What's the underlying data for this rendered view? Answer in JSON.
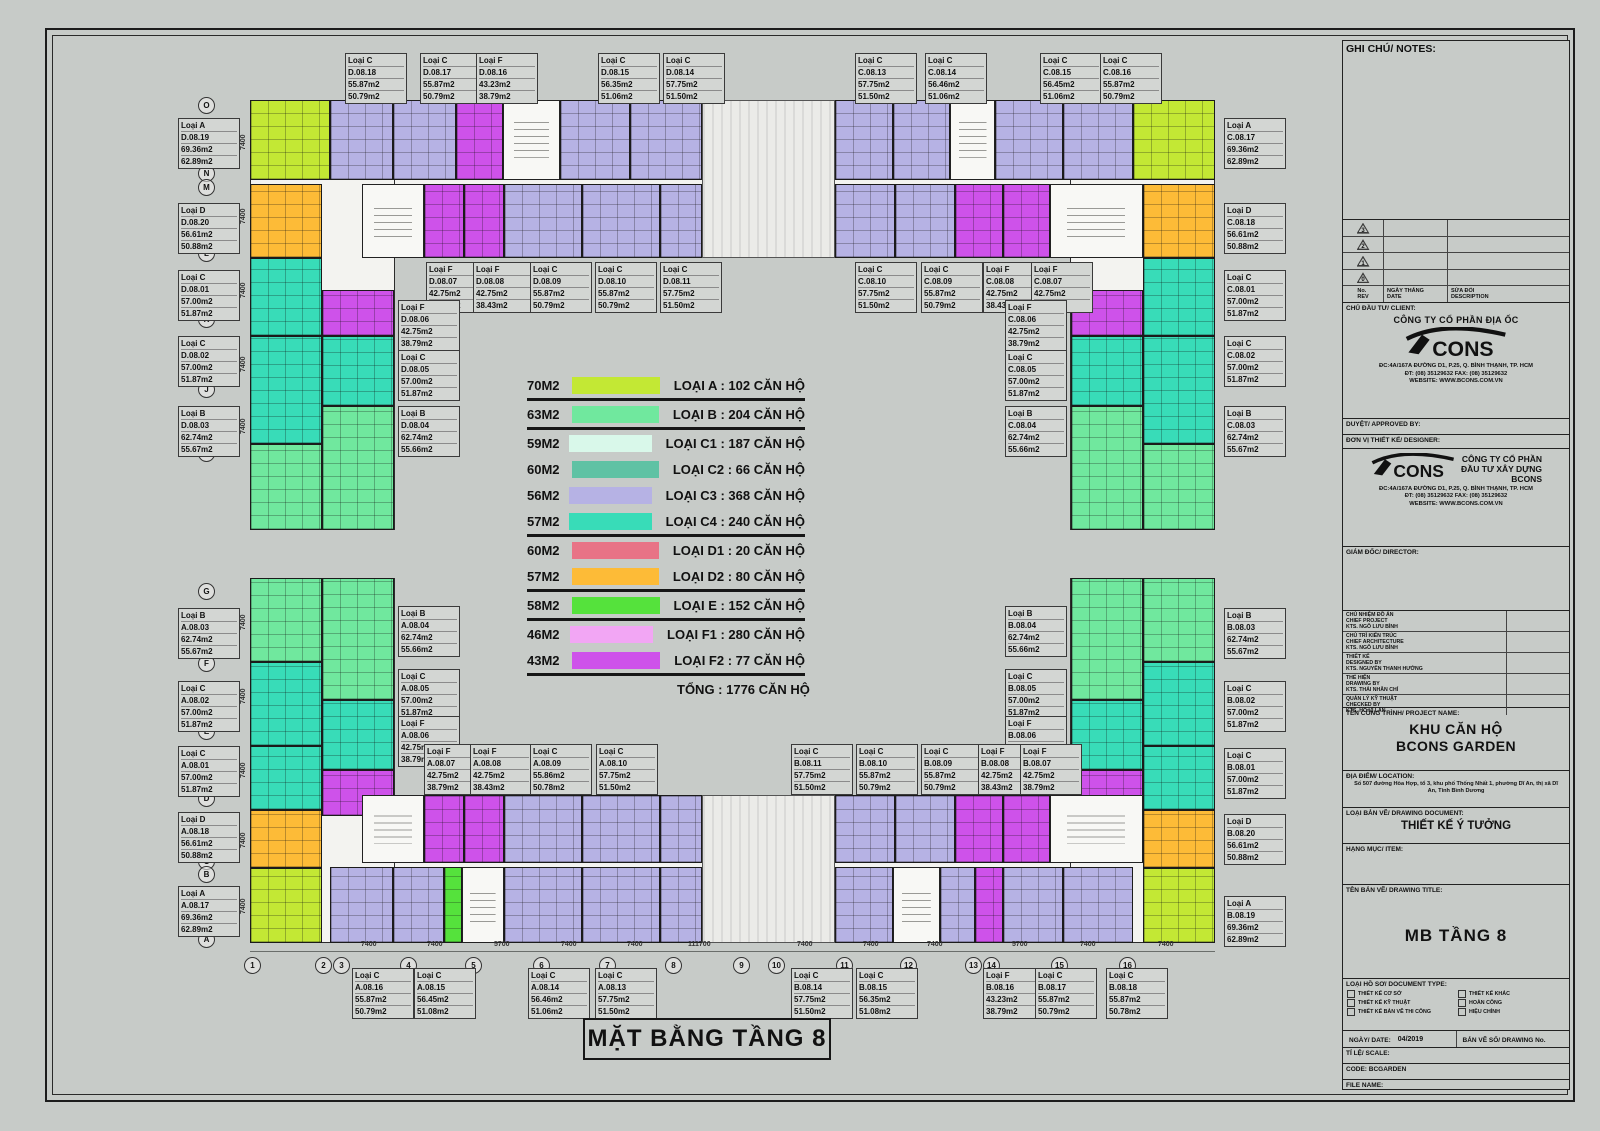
{
  "drawing_title": "MẶT BẰNG TẦNG 8",
  "type_colors": {
    "A": "#c3e834",
    "B": "#70e89e",
    "C1": "#d9f8ea",
    "C2": "#5fc2a4",
    "C3": "#b6b2e4",
    "C4": "#38dcb8",
    "D1": "#e87386",
    "D2": "#fdbb37",
    "E": "#55e23c",
    "F1": "#f2a6f4",
    "F2": "#ce52ea"
  },
  "legend": {
    "rows": [
      {
        "area": "70M2",
        "type": "LOẠI A",
        "count": ": 102 CĂN HỘ",
        "color": "#c3e834",
        "sep": true
      },
      {
        "area": "63M2",
        "type": "LOẠI B",
        "count": ": 204 CĂN HỘ",
        "color": "#70e89e",
        "sep": true
      },
      {
        "area": "59M2",
        "type": "LOẠI C1",
        "count": ": 187 CĂN HỘ",
        "color": "#d9f8ea",
        "sep": false
      },
      {
        "area": "60M2",
        "type": "LOẠI C2",
        "count": ":   66 CĂN HỘ",
        "color": "#5fc2a4",
        "sep": false
      },
      {
        "area": "56M2",
        "type": "LOẠI C3",
        "count": ": 368 CĂN HỘ",
        "color": "#b6b2e4",
        "sep": false
      },
      {
        "area": "57M2",
        "type": "LOẠI C4",
        "count": ": 240 CĂN HỘ",
        "color": "#38dcb8",
        "sep": true
      },
      {
        "area": "60M2",
        "type": "LOẠI D1",
        "count": ":   20 CĂN HỘ",
        "color": "#e87386",
        "sep": false
      },
      {
        "area": "57M2",
        "type": "LOẠI D2",
        "count": ":   80 CĂN HỘ",
        "color": "#fdbb37",
        "sep": true
      },
      {
        "area": "58M2",
        "type": "LOẠI E",
        "count": ":  152 CĂN HỘ",
        "color": "#55e23c",
        "sep": true
      },
      {
        "area": "46M2",
        "type": "LOẠI F1",
        "count": ": 280 CĂN HỘ",
        "color": "#f2a6f4",
        "sep": false
      },
      {
        "area": "43M2",
        "type": "LOẠI F2",
        "count": ":   77 CĂN HỘ",
        "color": "#ce52ea",
        "sep": true
      }
    ],
    "total_label": "TỔNG",
    "total_value": ": 1776 CĂN HỘ"
  },
  "units": [
    {
      "code": "D.08.18",
      "type": "Loại C",
      "tk": "C3",
      "gross": "55.87m2",
      "net": "50.79m2"
    },
    {
      "code": "D.08.17",
      "type": "Loại C",
      "tk": "C3",
      "gross": "55.87m2",
      "net": "50.79m2"
    },
    {
      "code": "D.08.16",
      "type": "Loại F",
      "tk": "F2",
      "gross": "43.23m2",
      "net": "38.79m2"
    },
    {
      "code": "D.08.15",
      "type": "Loại C",
      "tk": "C3",
      "gross": "56.35m2",
      "net": "51.06m2"
    },
    {
      "code": "D.08.14",
      "type": "Loại C",
      "tk": "C3",
      "gross": "57.75m2",
      "net": "51.50m2"
    },
    {
      "code": "C.08.13",
      "type": "Loại C",
      "tk": "C3",
      "gross": "57.75m2",
      "net": "51.50m2"
    },
    {
      "code": "C.08.14",
      "type": "Loại C",
      "tk": "C3",
      "gross": "56.46m2",
      "net": "51.06m2"
    },
    {
      "code": "C.08.15",
      "type": "Loại C",
      "tk": "C3",
      "gross": "56.45m2",
      "net": "51.06m2"
    },
    {
      "code": "C.08.16",
      "type": "Loại C",
      "tk": "C3",
      "gross": "55.87m2",
      "net": "50.79m2"
    },
    {
      "code": "D.08.07",
      "type": "Loại F",
      "tk": "F2",
      "gross": "42.75m2",
      "net": "38.79m2"
    },
    {
      "code": "D.08.08",
      "type": "Loại F",
      "tk": "F2",
      "gross": "42.75m2",
      "net": "38.43m2"
    },
    {
      "code": "D.08.09",
      "type": "Loại C",
      "tk": "C3",
      "gross": "55.87m2",
      "net": "50.79m2"
    },
    {
      "code": "D.08.10",
      "type": "Loại C",
      "tk": "C3",
      "gross": "55.87m2",
      "net": "50.79m2"
    },
    {
      "code": "D.08.11",
      "type": "Loại C",
      "tk": "C3",
      "gross": "57.75m2",
      "net": "51.50m2"
    },
    {
      "code": "C.08.10",
      "type": "Loại C",
      "tk": "C3",
      "gross": "57.75m2",
      "net": "51.50m2"
    },
    {
      "code": "C.08.09",
      "type": "Loại C",
      "tk": "C3",
      "gross": "55.87m2",
      "net": "50.79m2"
    },
    {
      "code": "C.08.08",
      "type": "Loại F",
      "tk": "F2",
      "gross": "42.75m2",
      "net": "38.43m2"
    },
    {
      "code": "C.08.07",
      "type": "Loại F",
      "tk": "F2",
      "gross": "42.75m2",
      "net": "38.79m2"
    },
    {
      "code": "D.08.19",
      "type": "Loại A",
      "tk": "A",
      "gross": "69.36m2",
      "net": "62.89m2"
    },
    {
      "code": "D.08.20",
      "type": "Loại D",
      "tk": "D2",
      "gross": "56.61m2",
      "net": "50.88m2"
    },
    {
      "code": "D.08.01",
      "type": "Loại C",
      "tk": "C4",
      "gross": "57.00m2",
      "net": "51.87m2"
    },
    {
      "code": "D.08.02",
      "type": "Loại C",
      "tk": "C4",
      "gross": "57.00m2",
      "net": "51.87m2"
    },
    {
      "code": "D.08.03",
      "type": "Loại B",
      "tk": "B",
      "gross": "62.74m2",
      "net": "55.67m2"
    },
    {
      "code": "D.08.06",
      "type": "Loại F",
      "tk": "F2",
      "gross": "42.75m2",
      "net": "38.79m2"
    },
    {
      "code": "D.08.05",
      "type": "Loại C",
      "tk": "C4",
      "gross": "57.00m2",
      "net": "51.87m2"
    },
    {
      "code": "D.08.04",
      "type": "Loại B",
      "tk": "B",
      "gross": "62.74m2",
      "net": "55.66m2"
    },
    {
      "code": "C.08.17",
      "type": "Loại A",
      "tk": "A",
      "gross": "69.36m2",
      "net": "62.89m2"
    },
    {
      "code": "C.08.18",
      "type": "Loại D",
      "tk": "D2",
      "gross": "56.61m2",
      "net": "50.88m2"
    },
    {
      "code": "C.08.01",
      "type": "Loại C",
      "tk": "C4",
      "gross": "57.00m2",
      "net": "51.87m2"
    },
    {
      "code": "C.08.02",
      "type": "Loại C",
      "tk": "C4",
      "gross": "57.00m2",
      "net": "51.87m2"
    },
    {
      "code": "C.08.03",
      "type": "Loại B",
      "tk": "B",
      "gross": "62.74m2",
      "net": "55.67m2"
    },
    {
      "code": "C.08.06",
      "type": "Loại F",
      "tk": "F2",
      "gross": "42.75m2",
      "net": "38.79m2"
    },
    {
      "code": "C.08.05",
      "type": "Loại C",
      "tk": "C4",
      "gross": "57.00m2",
      "net": "51.87m2"
    },
    {
      "code": "C.08.04",
      "type": "Loại B",
      "tk": "B",
      "gross": "62.74m2",
      "net": "55.66m2"
    },
    {
      "code": "A.08.03",
      "type": "Loại B",
      "tk": "B",
      "gross": "62.74m2",
      "net": "55.67m2"
    },
    {
      "code": "A.08.02",
      "type": "Loại C",
      "tk": "C4",
      "gross": "57.00m2",
      "net": "51.87m2"
    },
    {
      "code": "A.08.01",
      "type": "Loại C",
      "tk": "C4",
      "gross": "57.00m2",
      "net": "51.87m2"
    },
    {
      "code": "A.08.18",
      "type": "Loại D",
      "tk": "D2",
      "gross": "56.61m2",
      "net": "50.88m2"
    },
    {
      "code": "A.08.17",
      "type": "Loại A",
      "tk": "A",
      "gross": "69.36m2",
      "net": "62.89m2"
    },
    {
      "code": "A.08.04",
      "type": "Loại B",
      "tk": "B",
      "gross": "62.74m2",
      "net": "55.66m2"
    },
    {
      "code": "A.08.05",
      "type": "Loại C",
      "tk": "C4",
      "gross": "57.00m2",
      "net": "51.87m2"
    },
    {
      "code": "A.08.06",
      "type": "Loại F",
      "tk": "F2",
      "gross": "42.75m2",
      "net": "38.79m2"
    },
    {
      "code": "B.08.03",
      "type": "Loại B",
      "tk": "B",
      "gross": "62.74m2",
      "net": "55.67m2"
    },
    {
      "code": "B.08.02",
      "type": "Loại C",
      "tk": "C4",
      "gross": "57.00m2",
      "net": "51.87m2"
    },
    {
      "code": "B.08.01",
      "type": "Loại C",
      "tk": "C4",
      "gross": "57.00m2",
      "net": "51.87m2"
    },
    {
      "code": "B.08.20",
      "type": "Loại D",
      "tk": "D2",
      "gross": "56.61m2",
      "net": "50.88m2"
    },
    {
      "code": "B.08.19",
      "type": "Loại A",
      "tk": "A",
      "gross": "69.36m2",
      "net": "62.89m2"
    },
    {
      "code": "B.08.04",
      "type": "Loại B",
      "tk": "B",
      "gross": "62.74m2",
      "net": "55.66m2"
    },
    {
      "code": "B.08.05",
      "type": "Loại C",
      "tk": "C4",
      "gross": "57.00m2",
      "net": "51.87m2"
    },
    {
      "code": "B.08.06",
      "type": "Loại F",
      "tk": "F2",
      "gross": "42.75m2",
      "net": "38.79m2"
    },
    {
      "code": "A.08.07",
      "type": "Loại F",
      "tk": "F2",
      "gross": "42.75m2",
      "net": "38.79m2"
    },
    {
      "code": "A.08.08",
      "type": "Loại F",
      "tk": "F2",
      "gross": "42.75m2",
      "net": "38.43m2"
    },
    {
      "code": "A.08.09",
      "type": "Loại C",
      "tk": "C3",
      "gross": "55.86m2",
      "net": "50.78m2"
    },
    {
      "code": "A.08.10",
      "type": "Loại C",
      "tk": "C3",
      "gross": "57.75m2",
      "net": "51.50m2"
    },
    {
      "code": "B.08.11",
      "type": "Loại C",
      "tk": "C3",
      "gross": "57.75m2",
      "net": "51.50m2"
    },
    {
      "code": "B.08.10",
      "type": "Loại C",
      "tk": "C3",
      "gross": "55.87m2",
      "net": "50.79m2"
    },
    {
      "code": "B.08.09",
      "type": "Loại C",
      "tk": "C3",
      "gross": "55.87m2",
      "net": "50.79m2"
    },
    {
      "code": "B.08.08",
      "type": "Loại F",
      "tk": "F2",
      "gross": "42.75m2",
      "net": "38.43m2"
    },
    {
      "code": "B.08.07",
      "type": "Loại F",
      "tk": "F2",
      "gross": "42.75m2",
      "net": "38.79m2"
    },
    {
      "code": "A.08.16",
      "type": "Loại C",
      "tk": "C3",
      "gross": "55.87m2",
      "net": "50.79m2"
    },
    {
      "code": "A.08.15",
      "type": "Loại C",
      "tk": "C3",
      "gross": "56.45m2",
      "net": "51.08m2"
    },
    {
      "code": "A.08.14",
      "type": "Loại C",
      "tk": "C3",
      "gross": "56.46m2",
      "net": "51.06m2"
    },
    {
      "code": "A.08.13",
      "type": "Loại C",
      "tk": "C3",
      "gross": "57.75m2",
      "net": "51.50m2"
    },
    {
      "code": "B.08.14",
      "type": "Loại C",
      "tk": "C3",
      "gross": "57.75m2",
      "net": "51.50m2"
    },
    {
      "code": "B.08.15",
      "type": "Loại C",
      "tk": "C3",
      "gross": "56.35m2",
      "net": "51.08m2"
    },
    {
      "code": "B.08.16",
      "type": "Loại F",
      "tk": "F2",
      "gross": "43.23m2",
      "net": "38.79m2"
    },
    {
      "code": "B.08.17",
      "type": "Loại C",
      "tk": "C3",
      "gross": "55.87m2",
      "net": "50.79m2"
    },
    {
      "code": "B.08.18",
      "type": "Loại C",
      "tk": "C3",
      "gross": "55.87m2",
      "net": "50.78m2"
    }
  ],
  "grid": {
    "letters": [
      "O",
      "N",
      "M",
      "L",
      "K",
      "J",
      "I",
      "G",
      "F",
      "E",
      "D",
      "C",
      "B",
      "A"
    ],
    "numbers": [
      "1",
      "2",
      "3",
      "4",
      "5",
      "6",
      "7",
      "8",
      "9",
      "10",
      "11",
      "12",
      "13",
      "14",
      "15",
      "16"
    ]
  },
  "dims_bottom": [
    "7400",
    "7400",
    "5700",
    "7400",
    "7400",
    "111700",
    "7400",
    "7400",
    "7400",
    "5700",
    "7400",
    "7400"
  ],
  "dims_left_value": "7400",
  "titleblock": {
    "notes_title": "GHI CHÚ/ NOTES:",
    "revision": {
      "c1a": "No.",
      "c1b": "REV",
      "c2a": "NGÀY THÁNG",
      "c2b": "DATE",
      "c3a": "SỬA ĐỔI",
      "c3b": "DESCRIPTION",
      "rows": [
        "3",
        "2",
        "1",
        "0"
      ]
    },
    "client_label": "CHỦ ĐẦU TƯ/ CLIENT:",
    "client_company": "CÔNG TY CỔ PHẦN ĐỊA ỐC",
    "logo_text": "CONS",
    "addr1": "ĐC:4A/167A ĐƯỜNG D1, P.25, Q. BÌNH THẠNH, TP. HCM",
    "addr2": "ĐT: (08) 35129632      FAX: (08) 35129632",
    "addr3": "WEBSITE: WWW.BCONS.COM.VN",
    "approved_label": "DUYỆT/ APPROVED BY:",
    "designer_label": "ĐƠN VỊ THIẾT KẾ/ DESIGNER:",
    "designer_company1": "CÔNG TY CỔ PHẦN",
    "designer_company2": "ĐẦU TƯ XÂY DỰNG",
    "designer_company3": "BCONS",
    "director_label": "GIÁM ĐỐC/ DIRECTOR:",
    "personnel": [
      {
        "vi": "CHỦ NHIỆM ĐỒ ÁN",
        "en": "CHIEF PROJECT",
        "name": "KTS. NGÔ LƯU BÌNH"
      },
      {
        "vi": "CHỦ TRÌ KIẾN TRÚC",
        "en": "CHIEF ARCHITECTURE",
        "name": "KTS. NGÔ LƯU BÌNH"
      },
      {
        "vi": "THIẾT KẾ",
        "en": "DESIGNED BY",
        "name": "KTS. NGUYỄN THANH HƯỚNG"
      },
      {
        "vi": "THỂ HIỆN",
        "en": "DRAWING BY",
        "name": "KTS. THÁI NHÂN CHÍ"
      },
      {
        "vi": "QUẢN LÝ KỸ THUẬT",
        "en": "CHECKED BY",
        "name": "KTS. HỒ VĨ LÂN"
      }
    ],
    "project_label": "TÊN CÔNG TRÌNH/ PROJECT NAME:",
    "project_name1": "KHU CĂN HỘ",
    "project_name2": "BCONS GARDEN",
    "location_label": "ĐỊA ĐIỂM/ LOCATION:",
    "location_text": "Số 507 đường Hòa Hợp, tổ 3, khu phố Thống Nhất 1, phường Dĩ An, thị xã Dĩ An, Tỉnh Bình Dương",
    "doc_label": "LOẠI BẢN VẼ/ DRAWING DOCUMENT:",
    "doc_value": "THIẾT KẾ Ý TƯỞNG",
    "item_label": "HẠNG MỤC/ ITEM:",
    "title_label": "TÊN BẢN VẼ/ DRAWING TITLE:",
    "title_value": "MB TẦNG 8",
    "doctype_label": "LOẠI HỒ SƠ/ DOCUMENT TYPE:",
    "doctype_options": [
      "THIẾT KẾ CƠ SỞ",
      "THIẾT KẾ KHÁC",
      "THIẾT KẾ KỸ THUẬT",
      "HOÀN CÔNG",
      "THIẾT KẾ BẢN VẼ THI CÔNG",
      "HIỆU CHỈNH"
    ],
    "date_label": "NGÀY/ DATE:",
    "date_value": "04/2019",
    "no_label": "BẢN VẼ SỐ/ DRAWING No.",
    "scale_label": "TỈ LỆ/ SCALE:",
    "code_label": "CODE: BCGARDEN",
    "file_label": "FILE NAME:"
  }
}
